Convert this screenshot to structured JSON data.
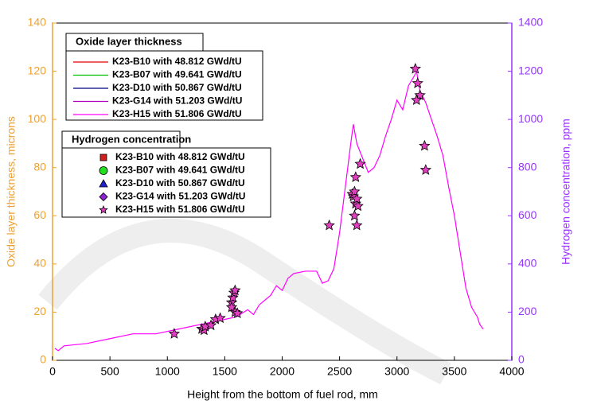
{
  "chart_data": {
    "type": "line",
    "xlabel": "Height from the bottom of fuel rod, mm",
    "ylabel": "Oxide layer thickness, microns",
    "y2label": "Hydrogen concentration, ppm",
    "ylabel_color": "#f0a030",
    "y2label_color": "#9933ff",
    "xlim": [
      0,
      4000
    ],
    "xticks": [
      0,
      500,
      1000,
      1500,
      2000,
      2500,
      3000,
      3500,
      4000
    ],
    "ylim": [
      0,
      140
    ],
    "yticks": [
      0,
      20,
      40,
      60,
      80,
      100,
      120,
      140
    ],
    "y2lim": [
      0,
      1400
    ],
    "y2ticks": [
      0,
      200,
      400,
      600,
      800,
      1000,
      1200,
      1400
    ],
    "oxide_title": "Oxide layer thickness",
    "oxide_series": [
      {
        "name": "K23-B10 with 48.812 GWd/tU",
        "color": "#e00000"
      },
      {
        "name": "K23-B07 with 49.641 GWd/tU",
        "color": "#00c000"
      },
      {
        "name": "K23-D10 with 50.867 GWd/tU",
        "color": "#000080"
      },
      {
        "name": "K23-G14 with 51.203 GWd/tU",
        "color": "#b000c0"
      },
      {
        "name": "K23-H15 with 51.806 GWd/tU",
        "color": "#ff00ff",
        "x": [
          20,
          50,
          100,
          300,
          500,
          700,
          900,
          1100,
          1300,
          1500,
          1600,
          1700,
          1750,
          1800,
          1900,
          1950,
          2000,
          2050,
          2100,
          2200,
          2300,
          2350,
          2400,
          2450,
          2500,
          2550,
          2600,
          2620,
          2650,
          2700,
          2750,
          2800,
          2850,
          2900,
          2950,
          3000,
          3050,
          3100,
          3150,
          3170,
          3200,
          3250,
          3300,
          3350,
          3400,
          3450,
          3500,
          3550,
          3600,
          3650,
          3700,
          3720,
          3750
        ],
        "values": [
          5,
          4,
          6,
          7,
          9,
          11,
          11,
          13,
          15,
          17,
          18,
          21,
          19,
          23,
          27,
          31,
          29,
          34,
          36,
          37,
          37,
          32,
          33,
          38,
          53,
          72,
          91,
          98,
          90,
          84,
          78,
          80,
          85,
          93,
          100,
          108,
          104,
          114,
          118,
          120,
          112,
          107,
          100,
          93,
          85,
          72,
          60,
          45,
          30,
          22,
          18,
          15,
          13
        ]
      }
    ],
    "hydrogen_title": "Hydrogen concentration",
    "hydrogen_series": [
      {
        "name": "K23-B10 with 48.812 GWd/tU",
        "color": "#d02020",
        "marker": "square"
      },
      {
        "name": "K23-B07 with 49.641 GWd/tU",
        "color": "#20e020",
        "marker": "circle"
      },
      {
        "name": "K23-D10 with 50.867 GWd/tU",
        "color": "#2020d0",
        "marker": "triangle"
      },
      {
        "name": "K23-G14 with 51.203 GWd/tU",
        "color": "#9020d0",
        "marker": "diamond"
      },
      {
        "name": "K23-H15 with 51.806 GWd/tU",
        "color": "#e040c0",
        "marker": "star",
        "axis": "y2",
        "x": [
          1060,
          1300,
          1320,
          1330,
          1380,
          1420,
          1460,
          1560,
          1570,
          1580,
          1590,
          1560,
          1590,
          1610,
          2410,
          2610,
          2620,
          2630,
          2640,
          2650,
          2660,
          2640,
          2680,
          2630,
          2650,
          3160,
          3180,
          3200,
          3170,
          3240,
          3250
        ],
        "values": [
          110,
          130,
          125,
          140,
          145,
          170,
          175,
          240,
          260,
          280,
          290,
          220,
          200,
          195,
          560,
          690,
          680,
          600,
          650,
          560,
          640,
          760,
          815,
          700,
          670,
          1210,
          1150,
          1100,
          1080,
          890,
          790
        ]
      }
    ]
  }
}
